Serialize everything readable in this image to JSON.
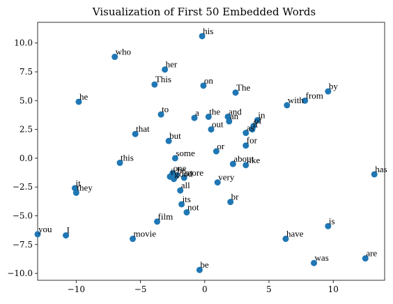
{
  "chart_data": {
    "type": "scatter",
    "title": "Visualization of First 50 Embedded Words",
    "xlabel": "",
    "ylabel": "",
    "xlim": [
      -13,
      14
    ],
    "ylim": [
      -10.6,
      11.8
    ],
    "xticks": [
      -10,
      -5,
      0,
      5,
      10
    ],
    "yticks": [
      -10.0,
      -7.5,
      -5.0,
      -2.5,
      0.0,
      2.5,
      5.0,
      7.5,
      10.0
    ],
    "xtick_labels": [
      "−10",
      "−5",
      "0",
      "5",
      "10"
    ],
    "ytick_labels": [
      "−10.0",
      "−7.5",
      "−5.0",
      "−2.5",
      "0.0",
      "2.5",
      "5.0",
      "7.5",
      "10.0"
    ],
    "grid": false,
    "marker_color": "#1f77b4",
    "points": [
      {
        "label": "his",
        "x": -0.2,
        "y": 10.6
      },
      {
        "label": "who",
        "x": -7.0,
        "y": 8.8
      },
      {
        "label": "her",
        "x": -3.1,
        "y": 7.7
      },
      {
        "label": "This",
        "x": -3.9,
        "y": 6.4
      },
      {
        "label": "on",
        "x": -0.1,
        "y": 6.3
      },
      {
        "label": "The",
        "x": 2.4,
        "y": 5.7
      },
      {
        "label": "by",
        "x": 9.6,
        "y": 5.8
      },
      {
        "label": "from",
        "x": 7.8,
        "y": 5.0
      },
      {
        "label": "with",
        "x": 6.4,
        "y": 4.6
      },
      {
        "label": "he",
        "x": -9.8,
        "y": 4.9
      },
      {
        "label": "to",
        "x": -3.4,
        "y": 3.8
      },
      {
        "label": "a",
        "x": -0.8,
        "y": 3.5
      },
      {
        "label": "the",
        "x": 0.3,
        "y": 3.6
      },
      {
        "label": "and",
        "x": 1.8,
        "y": 3.6
      },
      {
        "label": "an",
        "x": 1.9,
        "y": 3.2
      },
      {
        "label": "in",
        "x": 4.1,
        "y": 3.3
      },
      {
        "label": "of",
        "x": 3.8,
        "y": 2.8
      },
      {
        "label": "it",
        "x": 3.7,
        "y": 2.5
      },
      {
        "label": "as",
        "x": 3.2,
        "y": 2.2
      },
      {
        "label": "out",
        "x": 0.5,
        "y": 2.5
      },
      {
        "label": "that",
        "x": -5.4,
        "y": 2.1
      },
      {
        "label": "but",
        "x": -2.8,
        "y": 1.5
      },
      {
        "label": "for",
        "x": 3.2,
        "y": 1.1
      },
      {
        "label": "or",
        "x": 0.9,
        "y": 0.6
      },
      {
        "label": "some",
        "x": -2.3,
        "y": 0.0
      },
      {
        "label": "this",
        "x": -6.6,
        "y": -0.4
      },
      {
        "label": "about",
        "x": 2.2,
        "y": -0.5
      },
      {
        "label": "like",
        "x": 3.2,
        "y": -0.6
      },
      {
        "label": "has",
        "x": 13.2,
        "y": -1.4
      },
      {
        "label": "one",
        "x": -2.5,
        "y": -1.3
      },
      {
        "label": "is",
        "x": -2.7,
        "y": -1.6
      },
      {
        "label": "be",
        "x": -2.2,
        "y": -1.5
      },
      {
        "label": "more",
        "x": -1.6,
        "y": -1.7
      },
      {
        "label": "good",
        "x": -2.4,
        "y": -1.8
      },
      {
        "label": "all",
        "x": -1.9,
        "y": -2.8
      },
      {
        "label": "very",
        "x": 1.0,
        "y": -2.1
      },
      {
        "label": "it",
        "x": -10.1,
        "y": -2.6
      },
      {
        "label": "they",
        "x": -10.0,
        "y": -3.0
      },
      {
        "label": "its",
        "x": -1.8,
        "y": -4.0
      },
      {
        "label": "br",
        "x": 2.0,
        "y": -3.8
      },
      {
        "label": "not",
        "x": -1.4,
        "y": -4.7
      },
      {
        "label": "film",
        "x": -3.7,
        "y": -5.5
      },
      {
        "label": "is",
        "x": 9.6,
        "y": -5.9
      },
      {
        "label": "you",
        "x": -13.0,
        "y": -6.6
      },
      {
        "label": "I",
        "x": -10.8,
        "y": -6.7
      },
      {
        "label": "movie",
        "x": -5.6,
        "y": -7.0
      },
      {
        "label": "have",
        "x": 6.3,
        "y": -7.0
      },
      {
        "label": "are",
        "x": 12.5,
        "y": -8.7
      },
      {
        "label": "was",
        "x": 8.5,
        "y": -9.1
      },
      {
        "label": "be",
        "x": -0.4,
        "y": -9.7
      }
    ]
  }
}
